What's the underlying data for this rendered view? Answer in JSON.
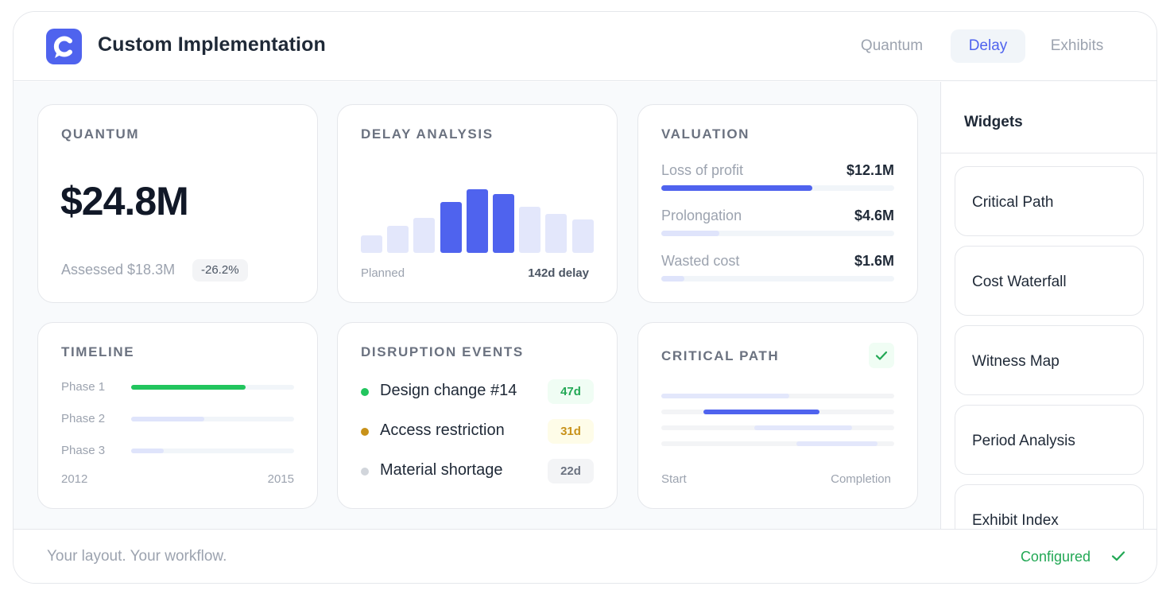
{
  "header": {
    "title": "Custom Implementation",
    "logo_icon": "brand-c-logo-icon",
    "tabs": [
      {
        "label": "Quantum",
        "active": false
      },
      {
        "label": "Delay",
        "active": true
      },
      {
        "label": "Exhibits",
        "active": false
      }
    ]
  },
  "cards": {
    "quantum": {
      "title": "QUANTUM",
      "value": "$24.8M",
      "assessed": "Assessed $18.3M",
      "delta": "-26.2%"
    },
    "delay": {
      "title": "DELAY ANALYSIS",
      "left_label": "Planned",
      "right_label": "142d delay",
      "bars": [
        {
          "level": 0.27,
          "highlight": false
        },
        {
          "level": 0.42,
          "highlight": false
        },
        {
          "level": 0.55,
          "highlight": false
        },
        {
          "level": 0.8,
          "highlight": true
        },
        {
          "level": 1.0,
          "highlight": true
        },
        {
          "level": 0.92,
          "highlight": true
        },
        {
          "level": 0.73,
          "highlight": false
        },
        {
          "level": 0.61,
          "highlight": false
        },
        {
          "level": 0.52,
          "highlight": false
        }
      ]
    },
    "valuation": {
      "title": "VALUATION",
      "items": [
        {
          "label": "Loss of profit",
          "amount": "$12.1M",
          "fill": 0.65,
          "color": "#4f63ee"
        },
        {
          "label": "Prolongation",
          "amount": "$4.6M",
          "fill": 0.25,
          "color": "#dfe4fb"
        },
        {
          "label": "Wasted cost",
          "amount": "$1.6M",
          "fill": 0.1,
          "color": "#dfe4fb"
        }
      ]
    },
    "timeline": {
      "title": "TIMELINE",
      "phases": [
        {
          "label": "Phase 1",
          "fill": 0.7,
          "color": "#22c55e"
        },
        {
          "label": "Phase 2",
          "fill": 0.45,
          "color": "#dfe4fb"
        },
        {
          "label": "Phase 3",
          "fill": 0.2,
          "color": "#dfe4fb"
        }
      ],
      "start_year": "2012",
      "end_year": "2015"
    },
    "disruption": {
      "title": "DISRUPTION EVENTS",
      "events": [
        {
          "label": "Design change #14",
          "days": "47d",
          "dot": "#22c55e",
          "badge_bg": "#f0fdf4",
          "badge_fg": "#22a855"
        },
        {
          "label": "Access restriction",
          "days": "31d",
          "dot": "#c8921a",
          "badge_bg": "#fefce8",
          "badge_fg": "#c8921a"
        },
        {
          "label": "Material shortage",
          "days": "22d",
          "dot": "#d1d5db",
          "badge_bg": "#f3f4f6",
          "badge_fg": "#6b7280"
        }
      ]
    },
    "critical_path": {
      "title": "CRITICAL PATH",
      "check_icon": "check-icon",
      "segments": [
        {
          "start": 0.0,
          "end": 0.55,
          "color": "#e3e7fb"
        },
        {
          "start": 0.18,
          "end": 0.68,
          "color": "#4f63ee"
        },
        {
          "start": 0.4,
          "end": 0.82,
          "color": "#e3e7fb"
        },
        {
          "start": 0.58,
          "end": 0.93,
          "color": "#e3e7fb"
        }
      ],
      "start_label": "Start",
      "end_label": "Completion"
    }
  },
  "sidebar": {
    "title": "Widgets",
    "widgets": [
      "Critical Path",
      "Cost Waterfall",
      "Witness Map",
      "Period Analysis",
      "Exhibit Index"
    ]
  },
  "footer": {
    "tagline": "Your layout. Your workflow.",
    "status": "Configured",
    "status_icon": "check-icon"
  },
  "colors": {
    "accent": "#4f63ee",
    "accent_light": "#dfe4fb",
    "success": "#22a855"
  }
}
